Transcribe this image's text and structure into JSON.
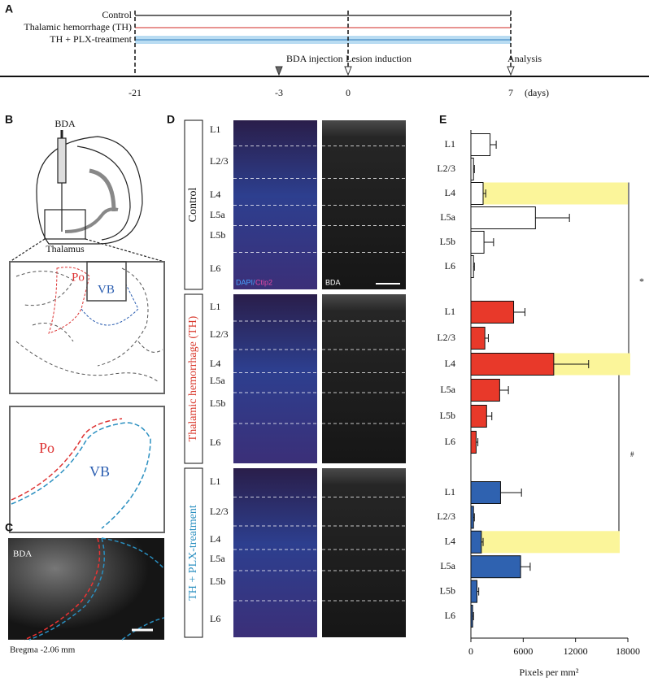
{
  "panel_labels": [
    "A",
    "B",
    "C",
    "D",
    "E"
  ],
  "timeline": {
    "groups": [
      "Control",
      "Thalamic hemorrhage (TH)",
      "TH + PLX-treatment"
    ],
    "events": [
      "BDA injection",
      "Lesion induction",
      "Analysis"
    ],
    "ticks": [
      "-21",
      "-3",
      "0",
      "7"
    ],
    "unit": "(days)"
  },
  "schematic": {
    "injection": "BDA",
    "region": "Thalamus",
    "inset_labels": [
      "Po",
      "VB"
    ],
    "zoom_labels": [
      "Po",
      "VB"
    ]
  },
  "section": {
    "stain": "BDA",
    "coordinate": "Bregma -2.06 mm"
  },
  "images": {
    "layers": [
      "L1",
      "L2/3",
      "L4",
      "L5a",
      "L5b",
      "L6"
    ],
    "stain_left": [
      "DAPI/",
      "Ctip2"
    ],
    "stain_right": "BDA"
  },
  "chart_data": {
    "type": "bar",
    "orientation": "horizontal",
    "categories": [
      "L1",
      "L2/3",
      "L4",
      "L5a",
      "L5b",
      "L6"
    ],
    "series": [
      {
        "color": "#ffffff",
        "values": [
          2200,
          300,
          1400,
          7400,
          1500,
          300
        ],
        "errors": [
          700,
          100,
          300,
          3900,
          1100,
          100
        ]
      },
      {
        "color": "#e8392a",
        "values": [
          4900,
          1600,
          9500,
          3300,
          1800,
          600
        ],
        "errors": [
          1300,
          400,
          4000,
          1000,
          600,
          200
        ]
      },
      {
        "color": "#2f62b0",
        "values": [
          3400,
          300,
          1200,
          5700,
          700,
          200
        ],
        "errors": [
          2400,
          100,
          200,
          1100,
          200,
          100
        ]
      }
    ],
    "xlim": [
      0,
      18000
    ],
    "xticks": [
      0,
      6000,
      12000,
      18000
    ],
    "xlabel": "Pixels per mm²",
    "highlight_color": "#fbf59a",
    "annotations": [
      "*",
      "#"
    ]
  }
}
